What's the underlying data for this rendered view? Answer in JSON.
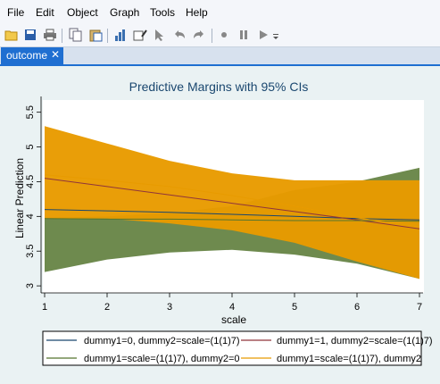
{
  "menu": [
    "File",
    "Edit",
    "Object",
    "Graph",
    "Tools",
    "Help"
  ],
  "toolbar_icons": [
    "open-icon",
    "save-icon",
    "print-icon",
    "copy-icon",
    "paste-icon",
    "chart-icon",
    "draw-icon",
    "select-icon",
    "undo-icon",
    "redo-icon",
    "record-icon",
    "pause-icon",
    "play-icon",
    "more-icon"
  ],
  "tab": {
    "label": "outcome",
    "close": "✕"
  },
  "colors": {
    "tab_active": "#1f6fd1",
    "plot_bg": "#ffffff",
    "graph_bg": "#eaf2f3",
    "navy": "#1a476f",
    "maroon": "#90353b",
    "olive": "#55752f",
    "orange": "#e89b00"
  },
  "chart_data": {
    "type": "line",
    "title": "Predictive Margins with 95% CIs",
    "xlabel": "scale",
    "ylabel": "Linear Prediction",
    "x": [
      1,
      2,
      3,
      4,
      5,
      6,
      7
    ],
    "xticks": [
      "1",
      "2",
      "3",
      "4",
      "5",
      "6",
      "7"
    ],
    "yticks": [
      "3",
      "3.5",
      "4",
      "4.5",
      "5",
      "5.5"
    ],
    "xlim": [
      1,
      7
    ],
    "ylim": [
      2.95,
      5.65
    ],
    "series": [
      {
        "name": "dummy1=0, dummy2=scale=(1(1)7)",
        "color": "#1a476f",
        "values": [
          4.1,
          4.08,
          4.06,
          4.03,
          4.0,
          3.97,
          3.95
        ]
      },
      {
        "name": "dummy1=1, dummy2=scale=(1(1)7)",
        "color": "#90353b",
        "values": [
          4.55,
          4.43,
          4.31,
          4.19,
          4.07,
          3.95,
          3.82
        ]
      },
      {
        "name": "dummy1=scale=(1(1)7), dummy2=0",
        "color": "#55752f",
        "values": [
          3.97,
          3.96,
          3.96,
          3.95,
          3.94,
          3.94,
          3.93
        ],
        "ci_lower": [
          3.2,
          3.38,
          3.48,
          3.52,
          3.45,
          3.32,
          3.1
        ],
        "ci_upper": [
          3.98,
          4.0,
          4.05,
          4.15,
          4.38,
          4.5,
          4.7
        ]
      },
      {
        "name": "dummy1=scale=(1(1)7), dummy2",
        "color": "#e89b00",
        "values": [
          4.6,
          4.52,
          4.43,
          4.3,
          4.15,
          3.98,
          3.85
        ],
        "ci_lower": [
          3.97,
          3.97,
          3.9,
          3.8,
          3.62,
          3.35,
          3.1
        ],
        "ci_upper": [
          5.3,
          5.05,
          4.8,
          4.62,
          4.52,
          4.52,
          4.52
        ]
      }
    ]
  }
}
